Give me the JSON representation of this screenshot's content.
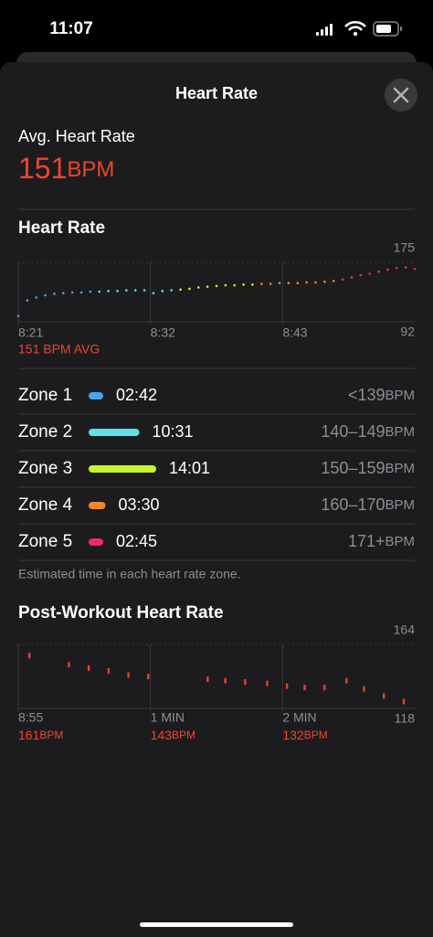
{
  "status_bar": {
    "time": "11:07"
  },
  "header": {
    "title": "Heart Rate"
  },
  "summary": {
    "label": "Avg. Heart Rate",
    "value": 151,
    "unit": "BPM"
  },
  "heart_rate_chart": {
    "type": "scatter",
    "title": "Heart Rate",
    "x": [
      0,
      0.75,
      1.5,
      2.25,
      3,
      3.75,
      4.5,
      5.25,
      6,
      6.75,
      7.5,
      8.25,
      9,
      9.75,
      10.5,
      11.25,
      12,
      12.75,
      13.5,
      14.25,
      15,
      15.75,
      16.5,
      17.25,
      18,
      18.75,
      19.5,
      20.25,
      21,
      21.75,
      22.5,
      23.25,
      24,
      24.75,
      25.5,
      26.25,
      27,
      27.75,
      28.5,
      29.25,
      30,
      30.75,
      31.5,
      32.25,
      33
    ],
    "values": [
      100,
      122,
      126,
      129,
      131,
      132,
      133,
      133,
      134,
      134,
      135,
      135,
      136,
      136,
      136,
      132,
      135,
      136,
      137,
      138,
      140,
      141,
      142,
      143,
      143,
      144,
      144,
      145,
      145,
      146,
      146,
      146,
      147,
      147,
      148,
      149,
      151,
      154,
      157,
      159,
      162,
      165,
      167,
      168,
      166
    ],
    "xlim": [
      0,
      33
    ],
    "xticks": [
      {
        "value": 0,
        "label": "8:21"
      },
      {
        "value": 11,
        "label": "8:32"
      },
      {
        "value": 22,
        "label": "8:43"
      }
    ],
    "ylim": [
      92,
      175
    ],
    "yticks": [
      92,
      175
    ],
    "avg_label": "151 BPM AVG"
  },
  "zones": [
    {
      "name": "Zone 1",
      "time": "02:42",
      "range": "<139",
      "unit": "BPM",
      "color": "#4aa3f0"
    },
    {
      "name": "Zone 2",
      "time": "10:31",
      "range": "140–149",
      "unit": "BPM",
      "color": "#5ce1e6"
    },
    {
      "name": "Zone 3",
      "time": "14:01",
      "range": "150–159",
      "unit": "BPM",
      "color": "#c6f52a"
    },
    {
      "name": "Zone 4",
      "time": "03:30",
      "range": "160–170",
      "unit": "BPM",
      "color": "#f4862a"
    },
    {
      "name": "Zone 5",
      "time": "02:45",
      "range": "171+",
      "unit": "BPM",
      "color": "#f0286e"
    }
  ],
  "zones_note": "Estimated time in each heart rate zone.",
  "post_workout_chart": {
    "type": "scatter",
    "title": "Post-Workout Heart Rate",
    "color": "#e8402a",
    "x": [
      5,
      23,
      32,
      41,
      50,
      59,
      86,
      94,
      103,
      113,
      122,
      130,
      139,
      149,
      157,
      166,
      175
    ],
    "values": [
      156,
      149.5,
      147,
      145,
      142,
      141,
      139,
      138,
      137,
      136,
      134,
      133,
      133,
      138,
      132,
      127,
      123
    ],
    "xlim": [
      0,
      180
    ],
    "xticks": [
      {
        "value": 0,
        "label": "8:55"
      },
      {
        "value": 60,
        "label": "1 MIN"
      },
      {
        "value": 120,
        "label": "2 MIN"
      }
    ],
    "ylim": [
      118,
      164
    ],
    "yticks": [
      118,
      164
    ],
    "readings": [
      {
        "value": 161,
        "unit": "BPM"
      },
      {
        "value": 143,
        "unit": "BPM"
      },
      {
        "value": 132,
        "unit": "BPM"
      }
    ]
  }
}
